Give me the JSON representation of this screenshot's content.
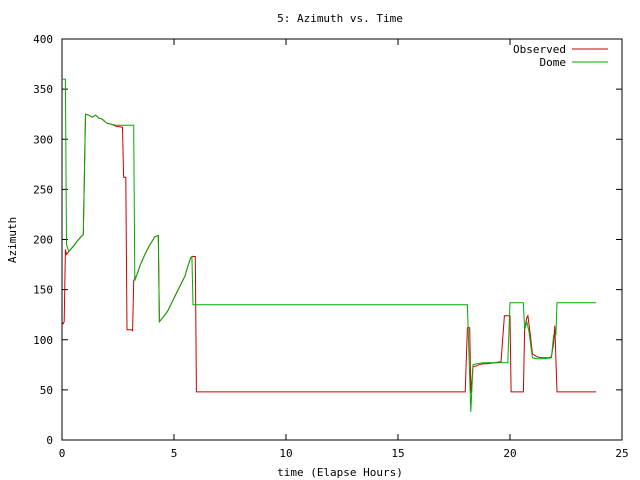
{
  "chart_data": {
    "type": "line",
    "title": "5: Azimuth vs. Time",
    "xlabel": "time (Elapse Hours)",
    "ylabel": "Azimuth",
    "xlim": [
      0,
      25
    ],
    "ylim": [
      0,
      400
    ],
    "xticks": [
      0,
      5,
      10,
      15,
      20,
      25
    ],
    "yticks": [
      0,
      50,
      100,
      150,
      200,
      250,
      300,
      350,
      400
    ],
    "grid": false,
    "legend": "top-right",
    "series": [
      {
        "name": "Observed",
        "color": "#cc0000",
        "points": [
          [
            0.0,
            118
          ],
          [
            0.05,
            116
          ],
          [
            0.1,
            118
          ],
          [
            0.15,
            190
          ],
          [
            0.2,
            185
          ],
          [
            0.3,
            188
          ],
          [
            0.5,
            193
          ],
          [
            0.7,
            199
          ],
          [
            0.9,
            204
          ],
          [
            0.95,
            205
          ],
          [
            1.05,
            325
          ],
          [
            1.2,
            324
          ],
          [
            1.35,
            322
          ],
          [
            1.5,
            324
          ],
          [
            1.65,
            321
          ],
          [
            1.8,
            320
          ],
          [
            2.0,
            316
          ],
          [
            2.2,
            315
          ],
          [
            2.4,
            313
          ],
          [
            2.7,
            312
          ],
          [
            2.75,
            262
          ],
          [
            2.85,
            262
          ],
          [
            2.9,
            110
          ],
          [
            3.1,
            110
          ],
          [
            3.15,
            109
          ],
          [
            3.2,
            159
          ],
          [
            3.35,
            165
          ],
          [
            3.5,
            175
          ],
          [
            3.7,
            185
          ],
          [
            3.9,
            194
          ],
          [
            4.15,
            203
          ],
          [
            4.3,
            204
          ],
          [
            4.35,
            118
          ],
          [
            4.5,
            122
          ],
          [
            4.7,
            128
          ],
          [
            4.9,
            137
          ],
          [
            5.1,
            146
          ],
          [
            5.3,
            155
          ],
          [
            5.5,
            164
          ],
          [
            5.6,
            172
          ],
          [
            5.75,
            182
          ],
          [
            5.85,
            183
          ],
          [
            5.95,
            183
          ],
          [
            6.0,
            48
          ],
          [
            10.0,
            48
          ],
          [
            15.0,
            48
          ],
          [
            18.0,
            48
          ],
          [
            18.1,
            112
          ],
          [
            18.2,
            112
          ],
          [
            18.25,
            47
          ],
          [
            18.35,
            73
          ],
          [
            18.5,
            74
          ],
          [
            18.6,
            75
          ],
          [
            18.8,
            76
          ],
          [
            19.0,
            76
          ],
          [
            19.3,
            77
          ],
          [
            19.6,
            78
          ],
          [
            19.75,
            124
          ],
          [
            20.0,
            124
          ],
          [
            20.05,
            48
          ],
          [
            20.3,
            48
          ],
          [
            20.6,
            48
          ],
          [
            20.65,
            110
          ],
          [
            20.75,
            122
          ],
          [
            20.8,
            124
          ],
          [
            20.9,
            106
          ],
          [
            21.0,
            86
          ],
          [
            21.2,
            83
          ],
          [
            21.4,
            82
          ],
          [
            21.7,
            82
          ],
          [
            21.85,
            83
          ],
          [
            21.95,
            97
          ],
          [
            22.0,
            114
          ],
          [
            22.1,
            48
          ],
          [
            23.0,
            48
          ],
          [
            23.85,
            48
          ]
        ]
      },
      {
        "name": "Dome",
        "color": "#00aa00",
        "points": [
          [
            0.0,
            360
          ],
          [
            0.1,
            360
          ],
          [
            0.15,
            360
          ],
          [
            0.2,
            195
          ],
          [
            0.3,
            188
          ],
          [
            0.5,
            193
          ],
          [
            0.7,
            199
          ],
          [
            0.9,
            204
          ],
          [
            0.95,
            205
          ],
          [
            1.05,
            325
          ],
          [
            1.2,
            324
          ],
          [
            1.35,
            322
          ],
          [
            1.5,
            324
          ],
          [
            1.65,
            321
          ],
          [
            1.8,
            320
          ],
          [
            2.0,
            316
          ],
          [
            2.2,
            315
          ],
          [
            2.4,
            314
          ],
          [
            2.7,
            314
          ],
          [
            3.2,
            314
          ],
          [
            3.25,
            159
          ],
          [
            3.35,
            165
          ],
          [
            3.5,
            175
          ],
          [
            3.7,
            185
          ],
          [
            3.9,
            194
          ],
          [
            4.15,
            203
          ],
          [
            4.3,
            204
          ],
          [
            4.35,
            118
          ],
          [
            4.5,
            122
          ],
          [
            4.7,
            128
          ],
          [
            4.9,
            137
          ],
          [
            5.1,
            146
          ],
          [
            5.3,
            155
          ],
          [
            5.5,
            164
          ],
          [
            5.6,
            172
          ],
          [
            5.75,
            182
          ],
          [
            5.8,
            183
          ],
          [
            5.85,
            135
          ],
          [
            6.0,
            135
          ],
          [
            10.0,
            135
          ],
          [
            15.0,
            135
          ],
          [
            18.0,
            135
          ],
          [
            18.1,
            135
          ],
          [
            18.25,
            28
          ],
          [
            18.35,
            75
          ],
          [
            18.5,
            76
          ],
          [
            18.8,
            77
          ],
          [
            19.3,
            77
          ],
          [
            19.6,
            77
          ],
          [
            19.9,
            77
          ],
          [
            20.0,
            137
          ],
          [
            20.3,
            137
          ],
          [
            20.6,
            137
          ],
          [
            20.65,
            110
          ],
          [
            20.75,
            118
          ],
          [
            20.85,
            108
          ],
          [
            21.0,
            82
          ],
          [
            21.2,
            81
          ],
          [
            21.5,
            81
          ],
          [
            21.85,
            82
          ],
          [
            21.95,
            105
          ],
          [
            22.05,
            105
          ],
          [
            22.1,
            137
          ],
          [
            23.0,
            137
          ],
          [
            23.85,
            137
          ]
        ]
      }
    ]
  }
}
